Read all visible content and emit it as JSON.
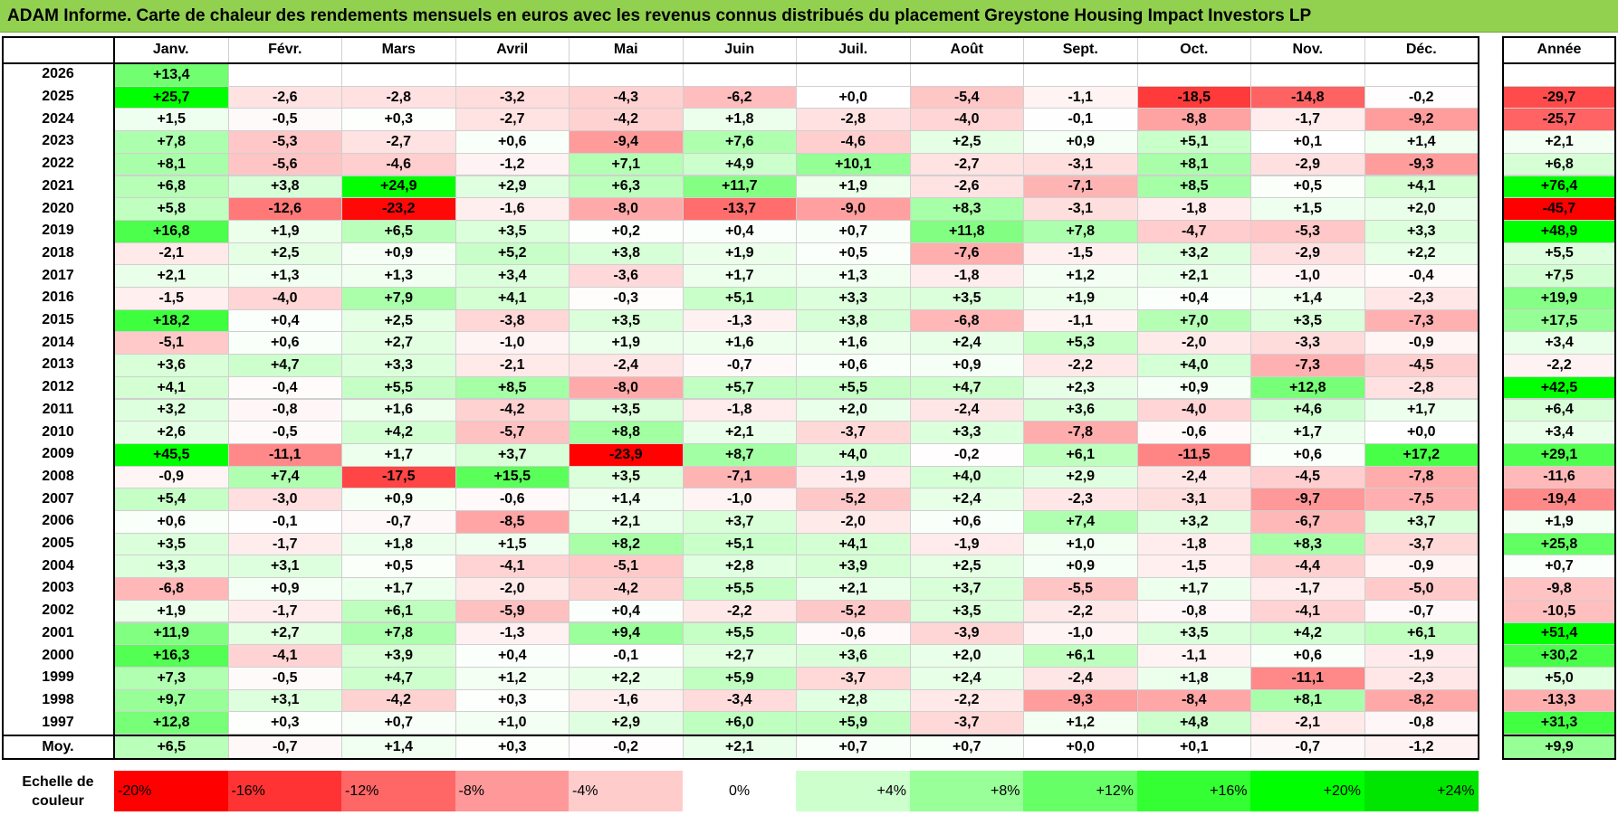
{
  "title": "ADAM Informe. Carte de chaleur des rendements mensuels en euros avec les revenus connus distribués du placement Greystone Housing Impact Investors LP",
  "chart_data": {
    "type": "heatmap",
    "columns": [
      "Janv.",
      "Févr.",
      "Mars",
      "Avril",
      "Mai",
      "Juin",
      "Juil.",
      "Août",
      "Sept.",
      "Oct.",
      "Nov.",
      "Déc."
    ],
    "year_column_label": "Année",
    "rows": [
      {
        "year": "2026",
        "months": [
          "+13,4",
          "",
          "",
          "",
          "",
          "",
          "",
          "",
          "",
          "",
          "",
          ""
        ],
        "annual": ""
      },
      {
        "year": "2025",
        "months": [
          "+25,7",
          "-2,6",
          "-2,8",
          "-3,2",
          "-4,3",
          "-6,2",
          "+0,0",
          "-5,4",
          "-1,1",
          "-18,5",
          "-14,8",
          "-0,2"
        ],
        "annual": "-29,7"
      },
      {
        "year": "2024",
        "months": [
          "+1,5",
          "-0,5",
          "+0,3",
          "-2,7",
          "-4,2",
          "+1,8",
          "-2,8",
          "-4,0",
          "-0,1",
          "-8,8",
          "-1,7",
          "-9,2"
        ],
        "annual": "-25,7"
      },
      {
        "year": "2023",
        "months": [
          "+7,8",
          "-5,3",
          "-2,7",
          "+0,6",
          "-9,4",
          "+7,6",
          "-4,6",
          "+2,5",
          "+0,9",
          "+5,1",
          "+0,1",
          "+1,4"
        ],
        "annual": "+2,1"
      },
      {
        "year": "2022",
        "months": [
          "+8,1",
          "-5,6",
          "-4,6",
          "-1,2",
          "+7,1",
          "+4,9",
          "+10,1",
          "-2,7",
          "-3,1",
          "+8,1",
          "-2,9",
          "-9,3"
        ],
        "annual": "+6,8"
      },
      {
        "year": "2021",
        "months": [
          "+6,8",
          "+3,8",
          "+24,9",
          "+2,9",
          "+6,3",
          "+11,7",
          "+1,9",
          "-2,6",
          "-7,1",
          "+8,5",
          "+0,5",
          "+4,1"
        ],
        "annual": "+76,4"
      },
      {
        "year": "2020",
        "months": [
          "+5,8",
          "-12,6",
          "-23,2",
          "-1,6",
          "-8,0",
          "-13,7",
          "-9,0",
          "+8,3",
          "-3,1",
          "-1,8",
          "+1,5",
          "+2,0"
        ],
        "annual": "-45,7"
      },
      {
        "year": "2019",
        "months": [
          "+16,8",
          "+1,9",
          "+6,5",
          "+3,5",
          "+0,2",
          "+0,4",
          "+0,7",
          "+11,8",
          "+7,8",
          "-4,7",
          "-5,3",
          "+3,3"
        ],
        "annual": "+48,9"
      },
      {
        "year": "2018",
        "months": [
          "-2,1",
          "+2,5",
          "+0,9",
          "+5,2",
          "+3,8",
          "+1,9",
          "+0,5",
          "-7,6",
          "-1,5",
          "+3,2",
          "-2,9",
          "+2,2"
        ],
        "annual": "+5,5"
      },
      {
        "year": "2017",
        "months": [
          "+2,1",
          "+1,3",
          "+1,3",
          "+3,4",
          "-3,6",
          "+1,7",
          "+1,3",
          "-1,8",
          "+1,2",
          "+2,1",
          "-1,0",
          "-0,4"
        ],
        "annual": "+7,5"
      },
      {
        "year": "2016",
        "months": [
          "-1,5",
          "-4,0",
          "+7,9",
          "+4,1",
          "-0,3",
          "+5,1",
          "+3,3",
          "+3,5",
          "+1,9",
          "+0,4",
          "+1,4",
          "-2,3"
        ],
        "annual": "+19,9"
      },
      {
        "year": "2015",
        "months": [
          "+18,2",
          "+0,4",
          "+2,5",
          "-3,8",
          "+3,5",
          "-1,3",
          "+3,8",
          "-6,8",
          "-1,1",
          "+7,0",
          "+3,5",
          "-7,3"
        ],
        "annual": "+17,5"
      },
      {
        "year": "2014",
        "months": [
          "-5,1",
          "+0,6",
          "+2,7",
          "-1,0",
          "+1,9",
          "+1,6",
          "+1,6",
          "+2,4",
          "+5,3",
          "-2,0",
          "-3,3",
          "-0,9"
        ],
        "annual": "+3,4"
      },
      {
        "year": "2013",
        "months": [
          "+3,6",
          "+4,7",
          "+3,3",
          "-2,1",
          "-2,4",
          "-0,7",
          "+0,6",
          "+0,9",
          "-2,2",
          "+4,0",
          "-7,3",
          "-4,5"
        ],
        "annual": "-2,2"
      },
      {
        "year": "2012",
        "months": [
          "+4,1",
          "-0,4",
          "+5,5",
          "+8,5",
          "-8,0",
          "+5,7",
          "+5,5",
          "+4,7",
          "+2,3",
          "+0,9",
          "+12,8",
          "-2,8"
        ],
        "annual": "+42,5"
      },
      {
        "year": "2011",
        "months": [
          "+3,2",
          "-0,8",
          "+1,6",
          "-4,2",
          "+3,5",
          "-1,8",
          "+2,0",
          "-2,4",
          "+3,6",
          "-4,0",
          "+4,6",
          "+1,7"
        ],
        "annual": "+6,4"
      },
      {
        "year": "2010",
        "months": [
          "+2,6",
          "-0,5",
          "+4,2",
          "-5,7",
          "+8,8",
          "+2,1",
          "-3,7",
          "+3,3",
          "-7,8",
          "-0,6",
          "+1,7",
          "+0,0"
        ],
        "annual": "+3,4"
      },
      {
        "year": "2009",
        "months": [
          "+45,5",
          "-11,1",
          "+1,7",
          "+3,7",
          "-23,9",
          "+8,7",
          "+4,0",
          "-0,2",
          "+6,1",
          "-11,5",
          "+0,6",
          "+17,2"
        ],
        "annual": "+29,1"
      },
      {
        "year": "2008",
        "months": [
          "-0,9",
          "+7,4",
          "-17,5",
          "+15,5",
          "+3,5",
          "-7,1",
          "-1,9",
          "+4,0",
          "+2,9",
          "-2,4",
          "-4,5",
          "-7,8"
        ],
        "annual": "-11,6"
      },
      {
        "year": "2007",
        "months": [
          "+5,4",
          "-3,0",
          "+0,9",
          "-0,6",
          "+1,4",
          "-1,0",
          "-5,2",
          "+2,4",
          "-2,3",
          "-3,1",
          "-9,7",
          "-7,5"
        ],
        "annual": "-19,4"
      },
      {
        "year": "2006",
        "months": [
          "+0,6",
          "-0,1",
          "-0,7",
          "-8,5",
          "+2,1",
          "+3,7",
          "-2,0",
          "+0,6",
          "+7,4",
          "+3,2",
          "-6,7",
          "+3,7"
        ],
        "annual": "+1,9"
      },
      {
        "year": "2005",
        "months": [
          "+3,5",
          "-1,7",
          "+1,8",
          "+1,5",
          "+8,2",
          "+5,1",
          "+4,1",
          "-1,9",
          "+1,0",
          "-1,8",
          "+8,3",
          "-3,7"
        ],
        "annual": "+25,8"
      },
      {
        "year": "2004",
        "months": [
          "+3,3",
          "+3,1",
          "+0,5",
          "-4,1",
          "-5,1",
          "+2,8",
          "+3,9",
          "+2,5",
          "+0,9",
          "-1,5",
          "-4,4",
          "-0,9"
        ],
        "annual": "+0,7"
      },
      {
        "year": "2003",
        "months": [
          "-6,8",
          "+0,9",
          "+1,7",
          "-2,0",
          "-4,2",
          "+5,5",
          "+2,1",
          "+3,7",
          "-5,5",
          "+1,7",
          "-1,7",
          "-5,0"
        ],
        "annual": "-9,8"
      },
      {
        "year": "2002",
        "months": [
          "+1,9",
          "-1,7",
          "+6,1",
          "-5,9",
          "+0,4",
          "-2,2",
          "-5,2",
          "+3,5",
          "-2,2",
          "-0,8",
          "-4,1",
          "-0,7"
        ],
        "annual": "-10,5"
      },
      {
        "year": "2001",
        "months": [
          "+11,9",
          "+2,7",
          "+7,8",
          "-1,3",
          "+9,4",
          "+5,5",
          "-0,6",
          "-3,9",
          "-1,0",
          "+3,5",
          "+4,2",
          "+6,1"
        ],
        "annual": "+51,4"
      },
      {
        "year": "2000",
        "months": [
          "+16,3",
          "-4,1",
          "+3,9",
          "+0,4",
          "-0,1",
          "+2,7",
          "+3,6",
          "+2,0",
          "+6,1",
          "-1,1",
          "+0,6",
          "-1,9"
        ],
        "annual": "+30,2"
      },
      {
        "year": "1999",
        "months": [
          "+7,3",
          "-0,5",
          "+4,7",
          "+1,2",
          "+2,2",
          "+5,9",
          "-3,7",
          "+2,4",
          "-2,4",
          "+1,8",
          "-11,1",
          "-2,3"
        ],
        "annual": "+5,0"
      },
      {
        "year": "1998",
        "months": [
          "+9,7",
          "+3,1",
          "-4,2",
          "+0,3",
          "-1,6",
          "-3,4",
          "+2,8",
          "-2,2",
          "-9,3",
          "-8,4",
          "+8,1",
          "-8,2"
        ],
        "annual": "-13,3"
      },
      {
        "year": "1997",
        "months": [
          "+12,8",
          "+0,3",
          "+0,7",
          "+1,0",
          "+2,9",
          "+6,0",
          "+5,9",
          "-3,7",
          "+1,2",
          "+4,8",
          "-2,1",
          "-0,8"
        ],
        "annual": "+31,3"
      }
    ],
    "average": {
      "label": "Moy.",
      "months": [
        "+6,5",
        "-0,7",
        "+1,4",
        "+0,3",
        "-0,2",
        "+2,1",
        "+0,7",
        "+0,7",
        "+0,0",
        "+0,1",
        "-0,7",
        "-1,2"
      ],
      "annual": "+9,9"
    },
    "scale": {
      "label": "Echelle de couleur",
      "steps": [
        {
          "label": "-20%",
          "value": -20,
          "color": "#ff0000"
        },
        {
          "label": "-16%",
          "value": -16,
          "color": "#ff3333"
        },
        {
          "label": "-12%",
          "value": -12,
          "color": "#ff6666"
        },
        {
          "label": "-8%",
          "value": -8,
          "color": "#ff9999"
        },
        {
          "label": "-4%",
          "value": -4,
          "color": "#ffcccc"
        },
        {
          "label": "0%",
          "value": 0,
          "color": "#ffffff"
        },
        {
          "label": "+4%",
          "value": 4,
          "color": "#ccffcc"
        },
        {
          "label": "+8%",
          "value": 8,
          "color": "#99ff99"
        },
        {
          "label": "+12%",
          "value": 12,
          "color": "#66ff66"
        },
        {
          "label": "+16%",
          "value": 16,
          "color": "#33ff33"
        },
        {
          "label": "+20%",
          "value": 20,
          "color": "#00ff00"
        },
        {
          "label": "+24%",
          "value": 24,
          "color": "#00e600"
        }
      ]
    }
  }
}
